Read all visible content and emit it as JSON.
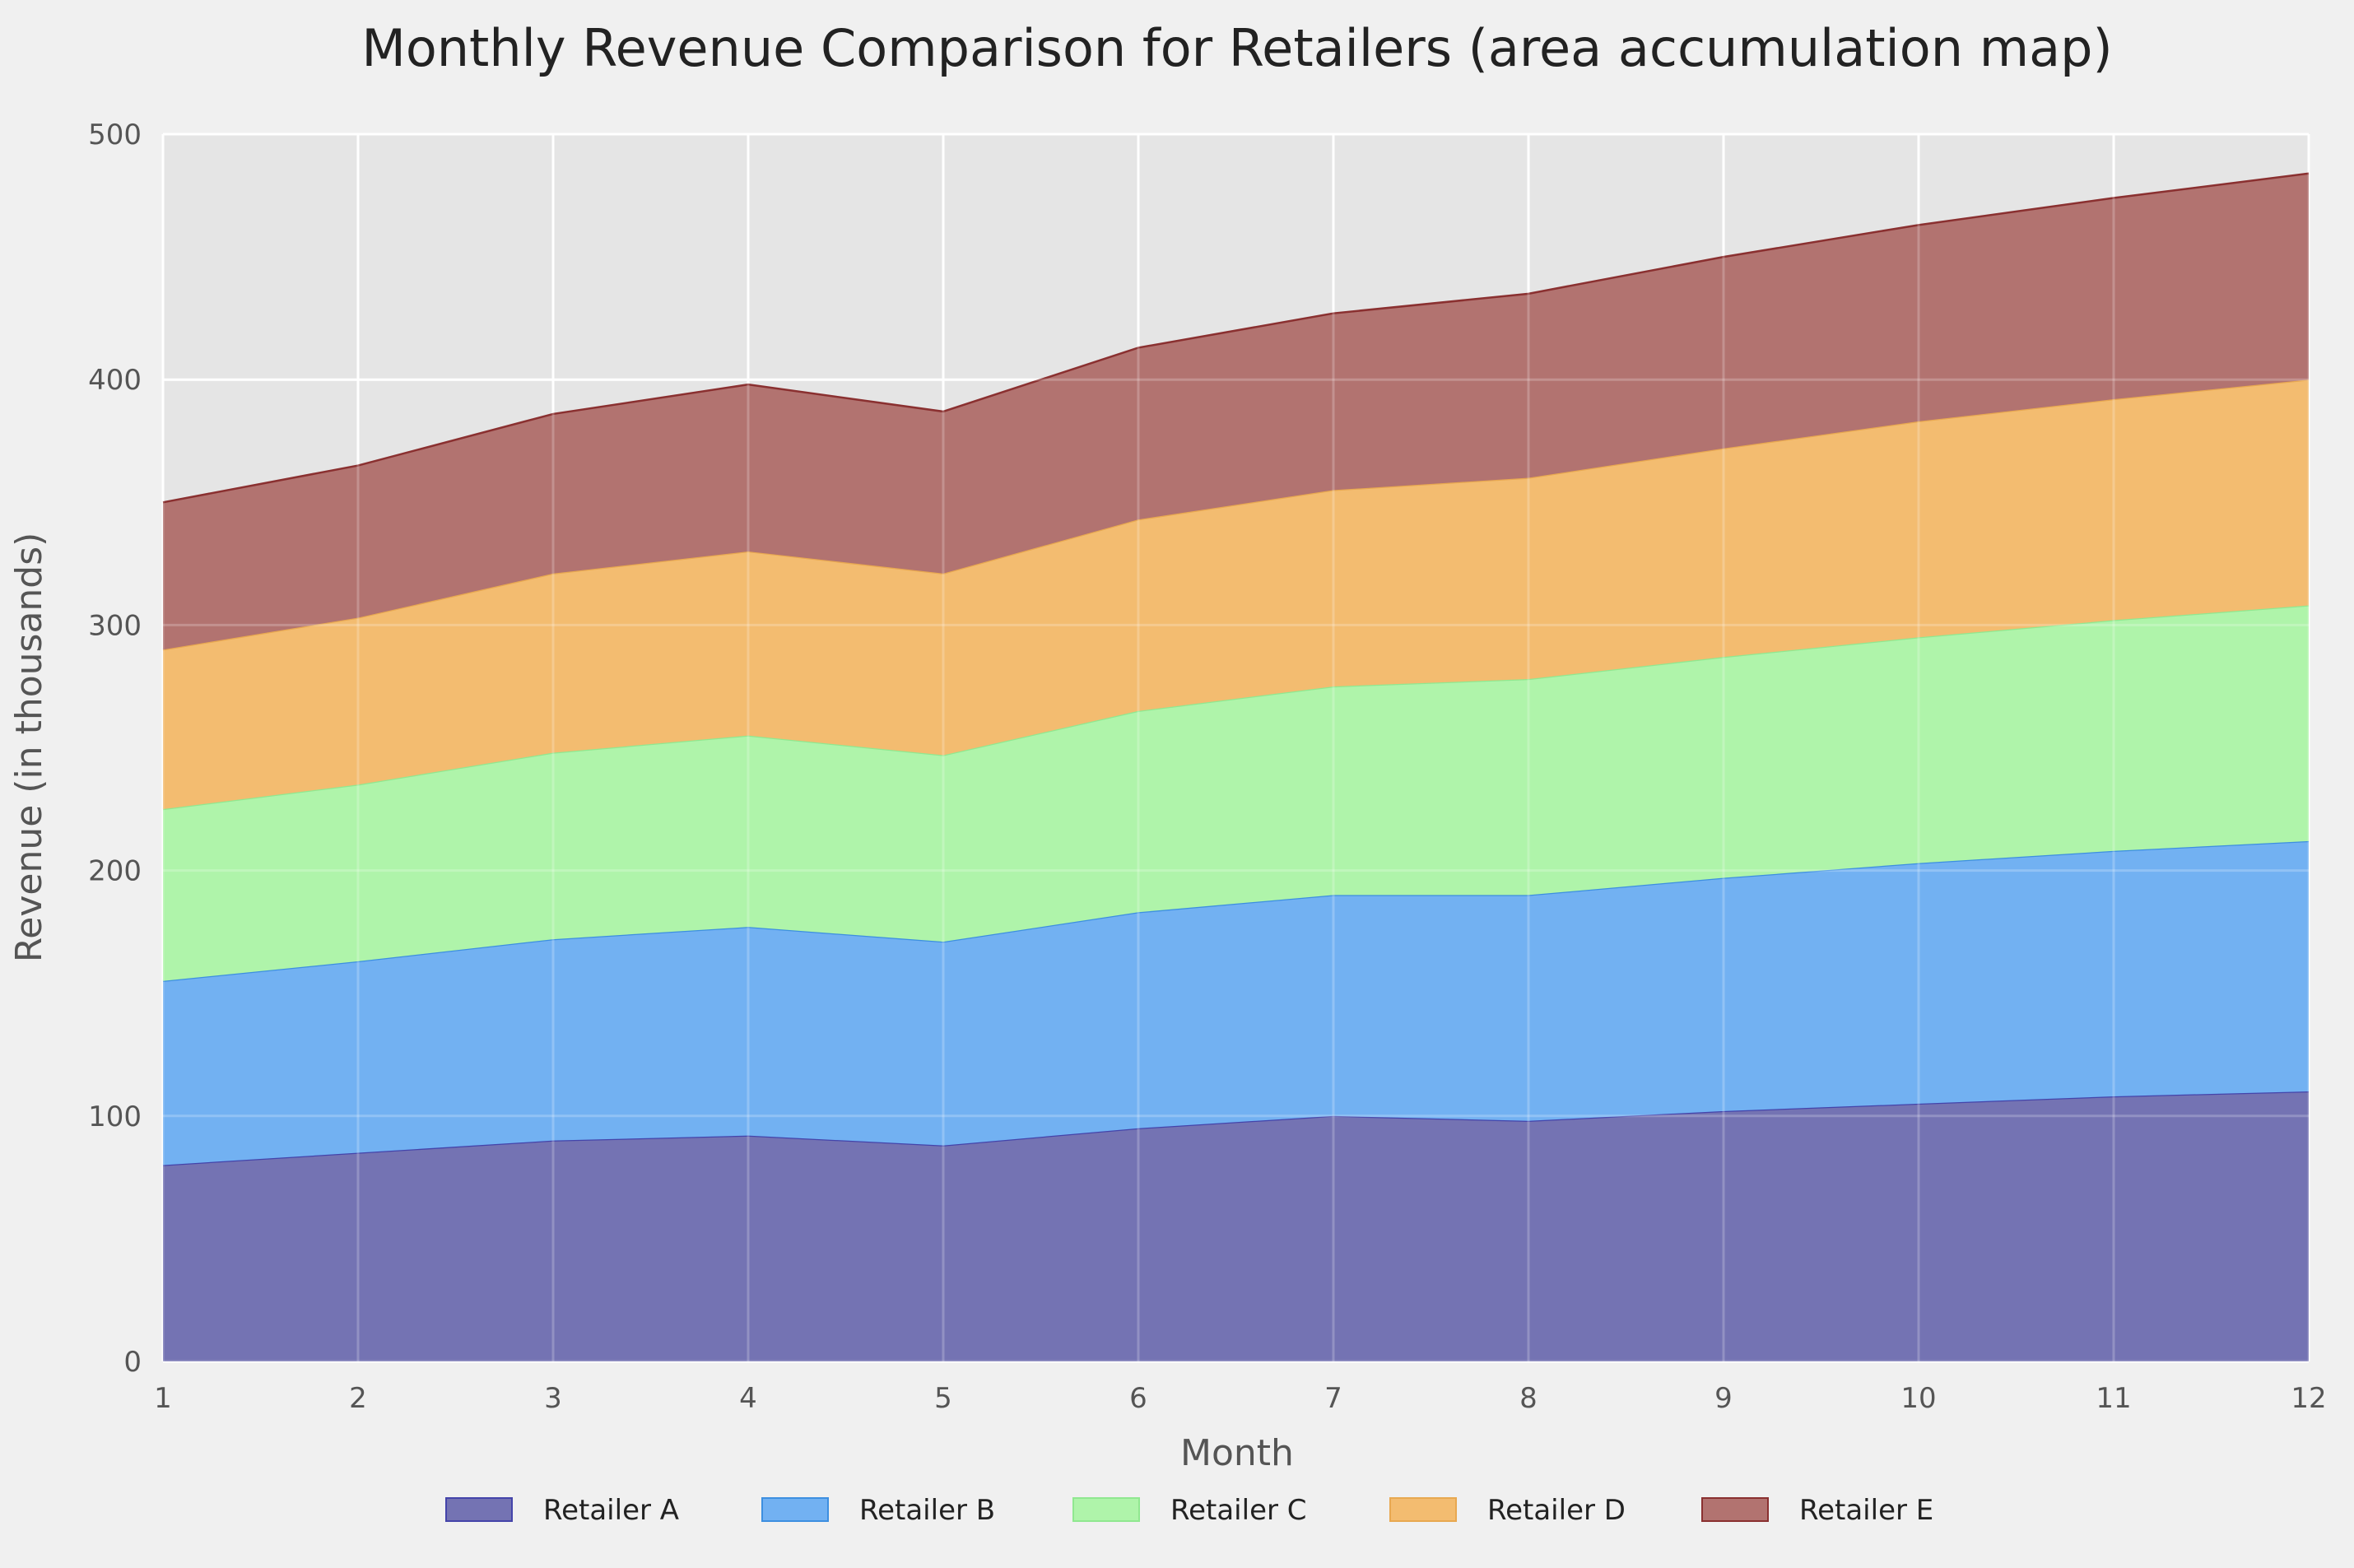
{
  "chart_data": {
    "type": "area",
    "stacked": true,
    "title": "Monthly Revenue Comparison for Retailers (area accumulation map)",
    "xlabel": "Month",
    "ylabel": "Revenue (in thousands)",
    "x": [
      1,
      2,
      3,
      4,
      5,
      6,
      7,
      8,
      9,
      10,
      11,
      12
    ],
    "xlim": [
      1,
      12
    ],
    "ylim": [
      0,
      500
    ],
    "yticks": [
      0,
      100,
      200,
      300,
      400,
      500
    ],
    "grid": true,
    "legend_position": "bottom-center",
    "series": [
      {
        "name": "Retailer A",
        "color": "#7473b3",
        "edge": "#4444aa",
        "values": [
          80,
          85,
          90,
          92,
          88,
          95,
          100,
          98,
          102,
          105,
          108,
          110
        ]
      },
      {
        "name": "Retailer B",
        "color": "#72b1f2",
        "edge": "#3d8fe0",
        "values": [
          75,
          78,
          82,
          85,
          83,
          88,
          90,
          92,
          95,
          98,
          100,
          102
        ]
      },
      {
        "name": "Retailer C",
        "color": "#aff4aa",
        "edge": "#90e890",
        "values": [
          70,
          72,
          76,
          78,
          76,
          82,
          85,
          88,
          90,
          92,
          94,
          96
        ]
      },
      {
        "name": "Retailer D",
        "color": "#f3bc70",
        "edge": "#e8a850",
        "values": [
          65,
          68,
          73,
          75,
          74,
          78,
          80,
          82,
          85,
          88,
          90,
          92
        ]
      },
      {
        "name": "Retailer E",
        "color": "#b27370",
        "edge": "#8a3030",
        "values": [
          60,
          62,
          65,
          68,
          66,
          70,
          72,
          75,
          78,
          80,
          82,
          84
        ]
      }
    ]
  }
}
